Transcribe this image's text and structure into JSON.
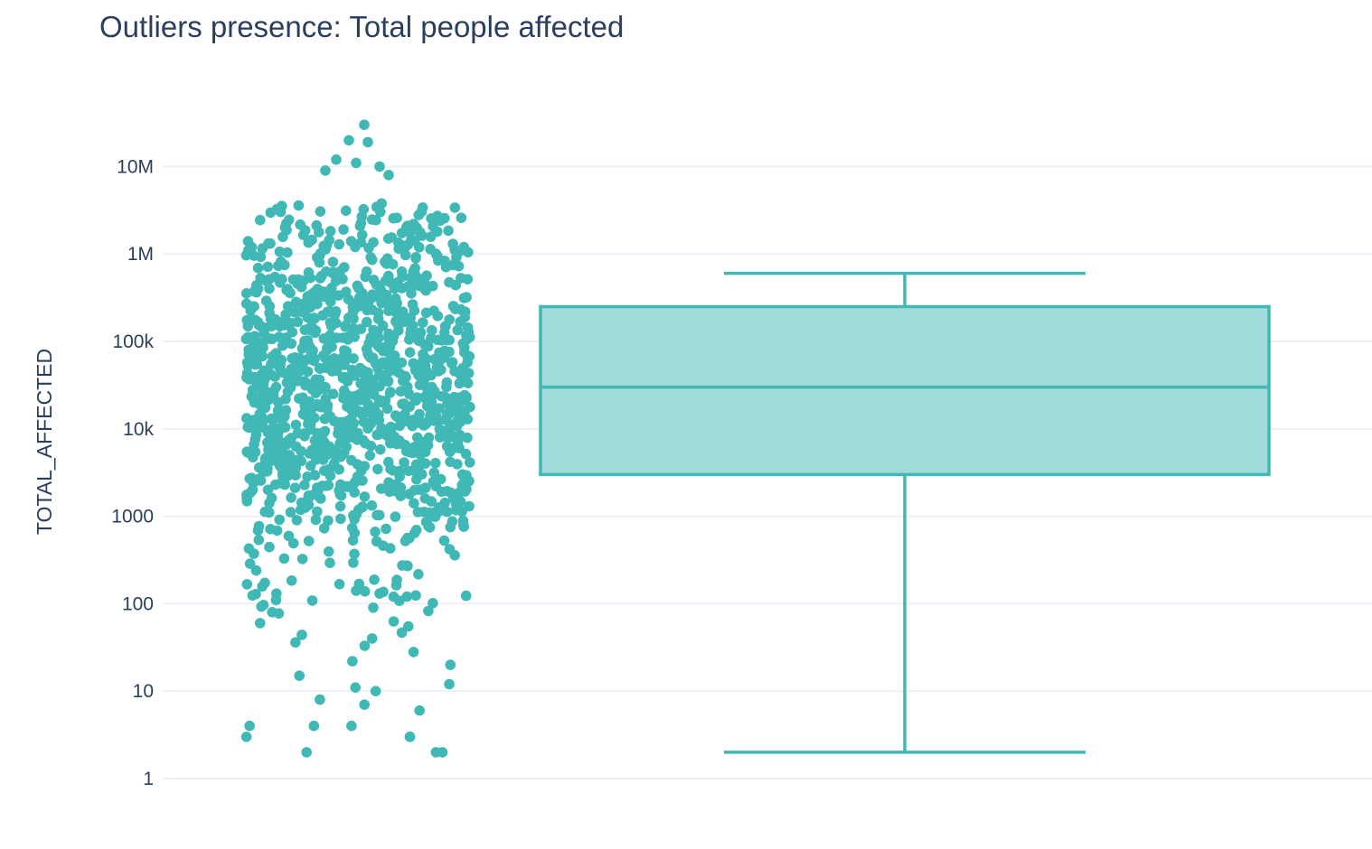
{
  "chart_data": {
    "type": "box",
    "title": "Outliers presence: Total people affected",
    "ylabel": "TOTAL_AFFECTED",
    "xlabel": "",
    "yscale": "log",
    "ylim": [
      1,
      30000000
    ],
    "yticks": [
      1,
      10,
      100,
      1000,
      10000,
      100000,
      1000000,
      10000000
    ],
    "ytick_labels": [
      "1",
      "10",
      "100",
      "1000",
      "10k",
      "100k",
      "1M",
      "10M"
    ],
    "grid": true,
    "legend": "none",
    "boxpoints": "all",
    "box": {
      "lower_fence": 2,
      "q1": 3000,
      "median": 30000,
      "q3": 250000,
      "upper_fence": 600000
    },
    "colors": {
      "marker": "#40b8b5",
      "box_line": "#40b8b5",
      "box_fill": "#a1dcdb"
    },
    "points_summary": {
      "approx_count": 1200,
      "min": 2,
      "max": 30000000
    },
    "outliers": [
      2,
      2,
      2,
      3,
      3,
      3,
      4,
      4,
      4,
      6,
      7,
      8,
      10,
      11,
      12,
      15,
      20,
      22,
      28,
      36,
      40,
      44,
      55,
      60,
      80,
      90,
      110,
      120
    ]
  }
}
